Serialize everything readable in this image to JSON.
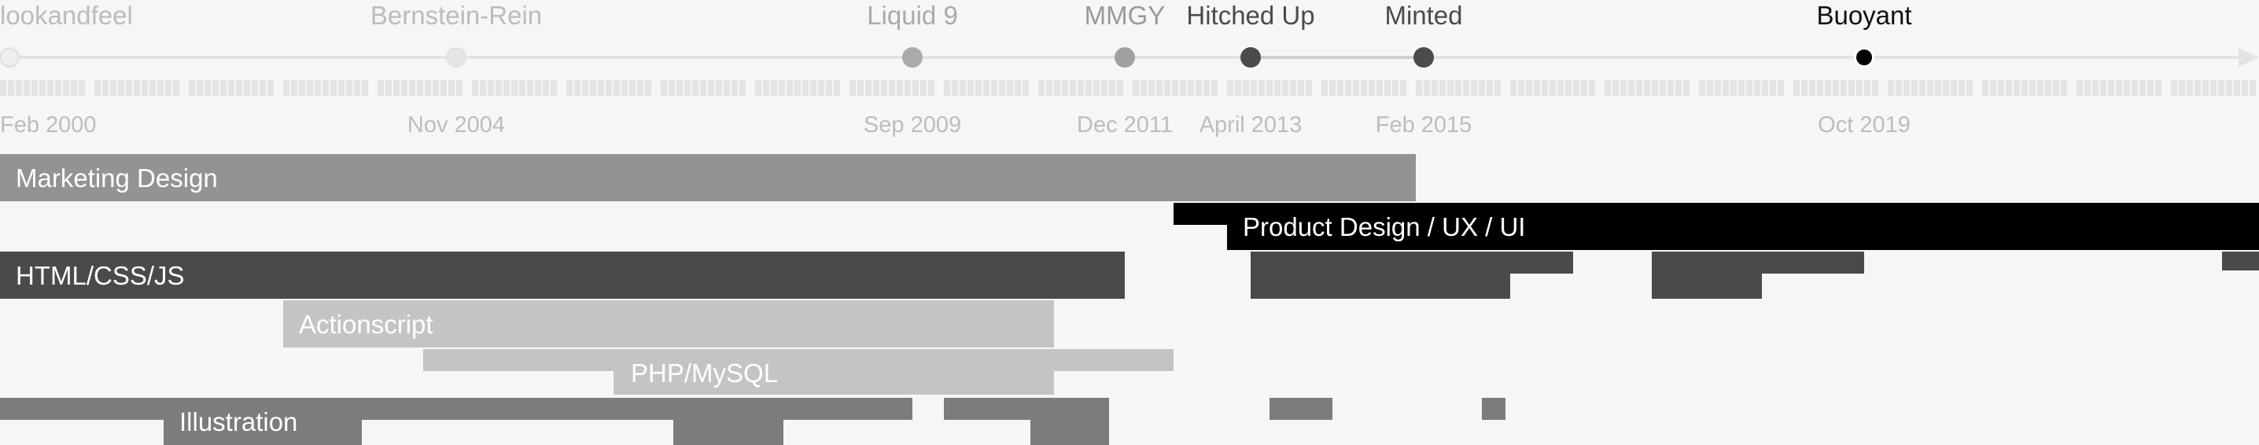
{
  "colors": {
    "background": "#f6f6f6",
    "marketing": "#939393",
    "product": "#000000",
    "html": "#4a4a4a",
    "actionscript": "#c4c4c4",
    "php": "#c4c4c4",
    "illustration": "#7c7c7c",
    "companies": [
      "#bcbcbc",
      "#bcbcbc",
      "#aaaaaa",
      "#9a9a9a",
      "#4b4b4b",
      "#4b4b4b",
      "#111111"
    ],
    "dots": [
      "#eeeeee",
      "#e6e6e6",
      "#aaaaaa",
      "#a0a0a0",
      "#4b4b4b",
      "#4b4b4b",
      "#000000"
    ]
  },
  "timeline": {
    "companies": [
      "lookandfeel",
      "Bernstein-Rein",
      "Liquid 9",
      "MMGY",
      "Hitched Up",
      "Minted",
      "Buoyant"
    ],
    "dates": [
      "Feb 2000",
      "Nov 2004",
      "Sep 2009",
      "Dec 2011",
      "April 2013",
      "Feb 2015",
      "Oct 2019"
    ]
  },
  "skills": [
    {
      "id": "marketing",
      "label": "Marketing Design"
    },
    {
      "id": "product",
      "label": "Product Design / UX / UI"
    },
    {
      "id": "html",
      "label": "HTML/CSS/JS"
    },
    {
      "id": "actionscript",
      "label": "Actionscript"
    },
    {
      "id": "php",
      "label": "PHP/MySQL"
    },
    {
      "id": "illustration",
      "label": "Illustration"
    }
  ]
}
